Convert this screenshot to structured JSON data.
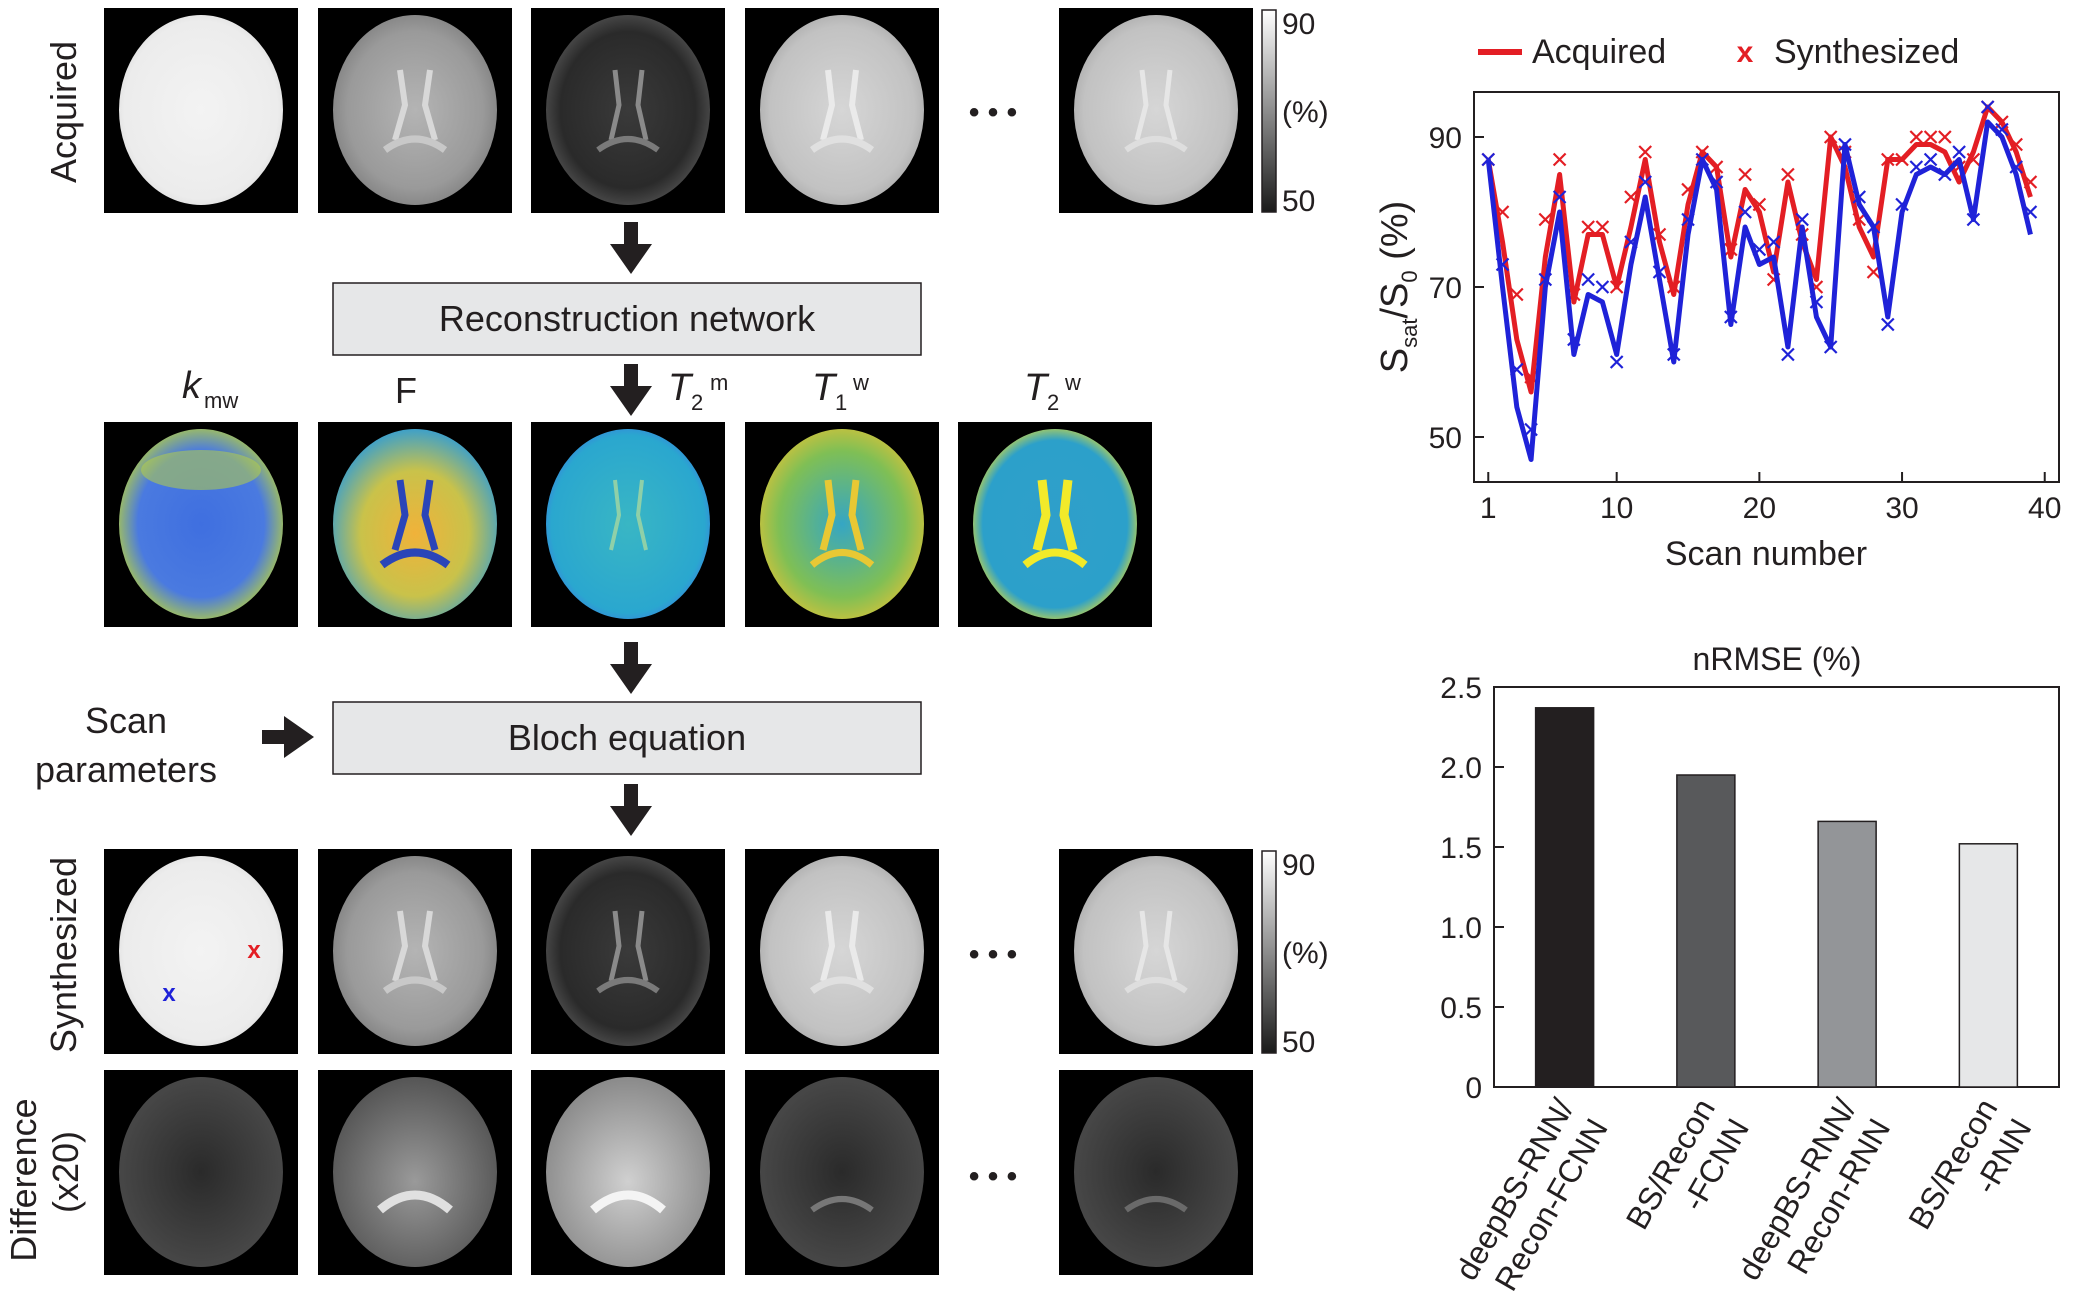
{
  "rows": {
    "acquired_label": "Acquired",
    "synthesized_label": "Synthesized",
    "difference_label_line1": "Difference",
    "difference_label_line2": "(x20)"
  },
  "colorbar": {
    "max": "90",
    "unit": "(%)",
    "min": "50"
  },
  "ellipsis": "• • •",
  "boxes": {
    "recon": "Reconstruction network",
    "bloch": "Bloch equation"
  },
  "scan_params": {
    "line1": "Scan",
    "line2": "parameters"
  },
  "param_maps": {
    "kmw": {
      "main": "k",
      "sub": "mw"
    },
    "F": {
      "main": "F"
    },
    "T2m": {
      "main": "T",
      "sub": "2",
      "sup": "m"
    },
    "T1w": {
      "main": "T",
      "sub": "1",
      "sup": "w"
    },
    "T2w": {
      "main": "T",
      "sub": "2",
      "sup": "w"
    }
  },
  "markers": {
    "red": "x",
    "blue": "x"
  },
  "colors": {
    "acquired": "#e31e24",
    "synthesized_blue": "#1f22d8",
    "arrow": "#231f20",
    "box_fill": "#e6e7e8"
  },
  "chart_data": [
    {
      "type": "line",
      "xlabel": "Scan number",
      "ylabel": {
        "S": "S",
        "sat": "sat",
        "slash": "/S",
        "zero": "0",
        "unit": " (%)"
      },
      "xlim": [
        0,
        41
      ],
      "ylim": [
        44,
        96
      ],
      "xticks": [
        1,
        10,
        20,
        30,
        40
      ],
      "yticks": [
        50,
        70,
        90
      ],
      "grid": false,
      "legend_position": "top",
      "legend": [
        "Acquired",
        "Synthesized"
      ],
      "x": [
        1,
        2,
        3,
        4,
        5,
        6,
        7,
        8,
        9,
        10,
        11,
        12,
        13,
        14,
        15,
        16,
        17,
        18,
        19,
        20,
        21,
        22,
        23,
        24,
        25,
        26,
        27,
        28,
        29,
        30,
        31,
        32,
        33,
        34,
        35,
        36,
        37,
        38,
        39
      ],
      "series": [
        {
          "name": "Acquired",
          "color": "#e31e24",
          "style": "line",
          "pixel": "red",
          "values": [
            87,
            76,
            63,
            56,
            74,
            85,
            68,
            77,
            77,
            70,
            78,
            87,
            76,
            69,
            81,
            88,
            86,
            74,
            83,
            80,
            72,
            84,
            76,
            71,
            90,
            86,
            78,
            74,
            87,
            87,
            89,
            89,
            88,
            84,
            88,
            94,
            92,
            88,
            82
          ]
        },
        {
          "name": "Synthesized",
          "color": "#e31e24",
          "style": "marker",
          "pixel": "red",
          "values": [
            87,
            80,
            69,
            58,
            79,
            87,
            69,
            78,
            78,
            70,
            82,
            88,
            77,
            70,
            83,
            88,
            86,
            75,
            85,
            81,
            71,
            85,
            77,
            70,
            90,
            88,
            79,
            72,
            87,
            87,
            90,
            90,
            90,
            86,
            87,
            94,
            92,
            89,
            84
          ]
        },
        {
          "name": "",
          "color": "#1f22d8",
          "style": "line",
          "pixel": "blue",
          "values": [
            87,
            70,
            54,
            47,
            70,
            80,
            61,
            69,
            68,
            61,
            73,
            82,
            71,
            60,
            77,
            87,
            83,
            65,
            78,
            73,
            74,
            62,
            78,
            66,
            62,
            89,
            81,
            78,
            66,
            80,
            85,
            86,
            85,
            87,
            79,
            92,
            90,
            85,
            77
          ]
        },
        {
          "name": "",
          "color": "#1f22d8",
          "style": "marker",
          "pixel": "blue",
          "values": [
            87,
            73,
            59,
            51,
            71,
            82,
            63,
            71,
            70,
            60,
            76,
            84,
            72,
            61,
            79,
            87,
            84,
            66,
            80,
            75,
            76,
            61,
            79,
            68,
            62,
            89,
            82,
            78,
            65,
            81,
            86,
            87,
            85,
            88,
            79,
            94,
            91,
            86,
            80
          ]
        }
      ]
    },
    {
      "type": "bar",
      "title": "nRMSE (%)",
      "ylim": [
        0,
        2.5
      ],
      "yticks": [
        "0",
        "0.5",
        "1.0",
        "1.5",
        "2.0",
        "2.5"
      ],
      "categories": [
        {
          "line1": "deepBS-RNN/",
          "line2": "Recon-FCNN"
        },
        {
          "line1": "BS/Recon",
          "line2": "-FCNN"
        },
        {
          "line1": "deepBS-RNN/",
          "line2": "Recon-RNN"
        },
        {
          "line1": "BS/Recon",
          "line2": "-RNN"
        }
      ],
      "values": [
        2.37,
        1.95,
        1.66,
        1.52
      ],
      "bar_colors": [
        "#231f20",
        "#58595b",
        "#939598",
        "#e6e7e8"
      ]
    }
  ]
}
